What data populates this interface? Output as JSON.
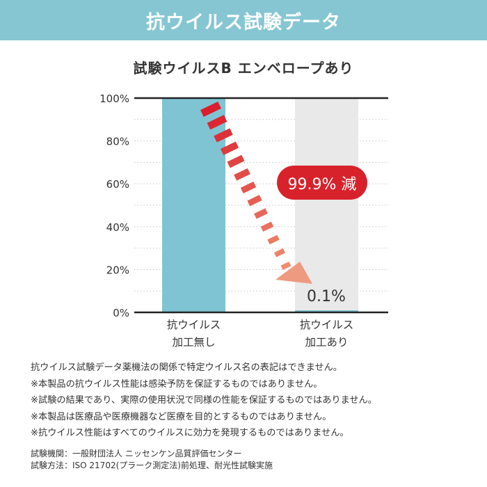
{
  "header": {
    "title": "抗ウイルス試験データ",
    "color": "#86c6d3"
  },
  "chart_data": {
    "type": "bar",
    "title": "試験ウイルスB エンベロープあり",
    "categories": [
      [
        "抗ウイルス",
        "加工無し"
      ],
      [
        "抗ウイルス",
        "加工あり"
      ]
    ],
    "values": [
      100,
      0.1
    ],
    "bar_colors": [
      "#7fc4d3",
      "#7fc4d3"
    ],
    "background_color": "#e9e9e9",
    "ylim": [
      0,
      100
    ],
    "yticks": [
      "0%",
      "20%",
      "40%",
      "60%",
      "80%",
      "100%"
    ],
    "grid": true,
    "annotations": {
      "reduction_label": "99.9% 減",
      "reduction_color": "#d8222b",
      "value_label": "0.1%"
    }
  },
  "notes": [
    "抗ウイルス試験データ薬機法の関係で特定ウイルス名の表記はできません。",
    "※本製品の抗ウイルス性能は感染予防を保証するものではありません。",
    "※試験の結果であり、実際の使用状況で同様の性能を保証するものではありません。",
    "※本製品は医療品や医療機器など医療を目的とするものではありません。",
    "※抗ウイルス性能はすべてのウイルスに効力を発現するものではありません。"
  ],
  "info": {
    "institution": "試験機関：一般財団法人 ニッセンケン品質評価センター",
    "method": "試験方法：ISO 21702(プラーク測定法)前処理、耐光性試験実施"
  }
}
